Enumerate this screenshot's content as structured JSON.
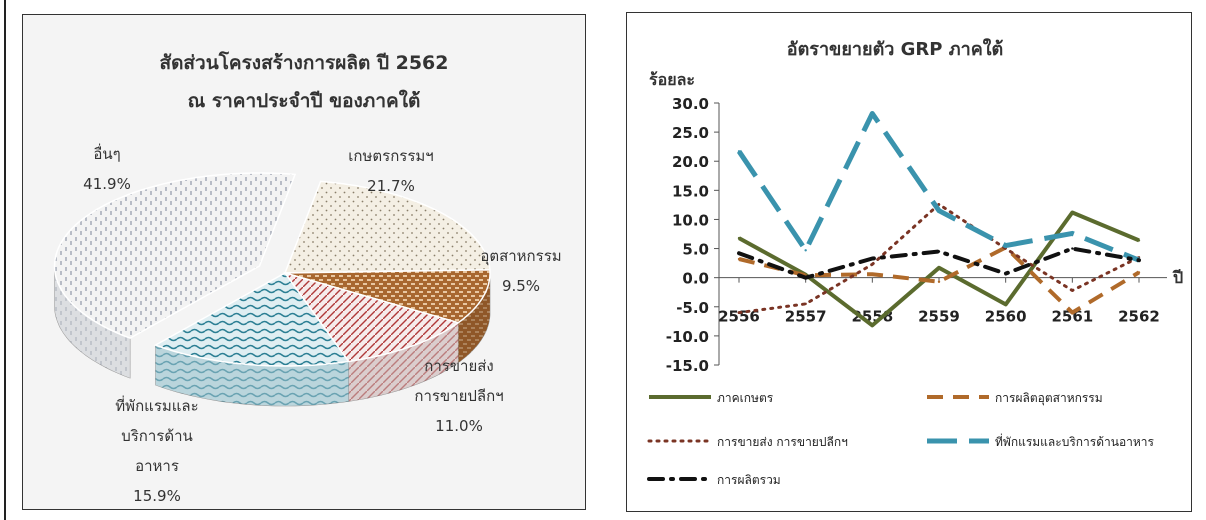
{
  "chart_data": [
    {
      "type": "pie",
      "title": "สัดส่วนโครงสร้างการผลิต ปี 2562",
      "subtitle": "ณ ราคาประจำปี ของภาคใต้",
      "slices": [
        {
          "label": "เกษตรกรรมฯ",
          "value": 21.7,
          "value_label": "21.7%"
        },
        {
          "label": "อุตสาหกรรม",
          "value": 9.5,
          "value_label": "9.5%"
        },
        {
          "label": "การขายส่ง การขายปลีกฯ",
          "label_lines": [
            "การขายส่ง",
            "การขายปลีกฯ"
          ],
          "value": 11.0,
          "value_label": "11.0%"
        },
        {
          "label": "ที่พักแรมและบริการด้านอาหาร",
          "label_lines": [
            "ที่พักแรมและ",
            "บริการด้าน",
            "อาหาร"
          ],
          "value": 15.9,
          "value_label": "15.9%"
        },
        {
          "label": "อื่นๆ",
          "value": 41.9,
          "value_label": "41.9%"
        }
      ]
    },
    {
      "type": "line",
      "title": "อัตราขยายตัว GRP ภาคใต้",
      "ylabel": "ร้อยละ",
      "xlabel": "ปี",
      "ylim": [
        -15,
        30
      ],
      "yticks": [
        30,
        25,
        20,
        15,
        10,
        5,
        0,
        -5,
        -10,
        -15
      ],
      "categories": [
        "2556",
        "2557",
        "2558",
        "2559",
        "2560",
        "2561",
        "2562"
      ],
      "legend_position": "bottom",
      "series": [
        {
          "name": "ภาคเกษตร",
          "values": [
            6.8,
            0.5,
            -8.2,
            1.7,
            -4.6,
            11.2,
            6.4
          ]
        },
        {
          "name": "การผลิตอุตสาหกรรม",
          "values": [
            3.2,
            0.4,
            0.6,
            -0.7,
            5.2,
            -6.0,
            0.9
          ]
        },
        {
          "name": "การขายส่ง การขายปลีกฯ",
          "values": [
            -6.0,
            -4.5,
            2.3,
            12.6,
            5.0,
            -2.2,
            3.5
          ]
        },
        {
          "name": "ที่พักแรมและบริการด้านอาหาร",
          "values": [
            21.7,
            4.7,
            28.2,
            11.5,
            5.5,
            7.6,
            3.0
          ]
        },
        {
          "name": "การผลิตรวม",
          "values": [
            4.2,
            0.0,
            3.3,
            4.5,
            0.7,
            5.0,
            3.0
          ]
        }
      ]
    }
  ]
}
